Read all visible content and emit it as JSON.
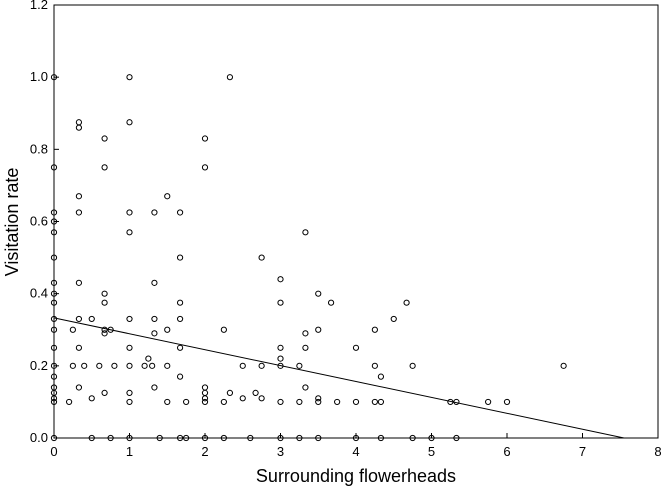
{
  "chart_data": {
    "type": "scatter",
    "title": "",
    "xlabel": "Surrounding flowerheads",
    "ylabel": "Visitation rate",
    "xlim": [
      0,
      8
    ],
    "ylim": [
      0,
      1.2
    ],
    "x_ticks": [
      "0",
      "1",
      "2",
      "3",
      "4",
      "5",
      "6",
      "7",
      "8"
    ],
    "y_ticks": [
      "0.0",
      "0.2",
      "0.4",
      "0.6",
      "0.8",
      "1.0",
      "1.2"
    ],
    "grid": false,
    "legend": "none",
    "marker": "open-circle",
    "marker_color": "#000000",
    "points": [
      [
        0,
        1.0
      ],
      [
        0,
        0.75
      ],
      [
        0,
        0.625
      ],
      [
        0,
        0.6
      ],
      [
        0,
        0.57
      ],
      [
        0,
        0.5
      ],
      [
        0,
        0.43
      ],
      [
        0,
        0.4
      ],
      [
        0,
        0.375
      ],
      [
        0,
        0.33
      ],
      [
        0,
        0.3
      ],
      [
        0,
        0.25
      ],
      [
        0,
        0.2
      ],
      [
        0,
        0.17
      ],
      [
        0,
        0.14
      ],
      [
        0,
        0.125
      ],
      [
        0,
        0.11
      ],
      [
        0,
        0.1
      ],
      [
        0,
        0
      ],
      [
        0.2,
        0.1
      ],
      [
        0.25,
        0.2
      ],
      [
        0.25,
        0.3
      ],
      [
        0.33,
        0.875
      ],
      [
        0.33,
        0.86
      ],
      [
        0.33,
        0.67
      ],
      [
        0.33,
        0.625
      ],
      [
        0.33,
        0.43
      ],
      [
        0.33,
        0.33
      ],
      [
        0.33,
        0.25
      ],
      [
        0.33,
        0.14
      ],
      [
        0.4,
        0.2
      ],
      [
        0.5,
        0.33
      ],
      [
        0.5,
        0.11
      ],
      [
        0.5,
        0
      ],
      [
        0.6,
        0.2
      ],
      [
        0.67,
        0.83
      ],
      [
        0.67,
        0.75
      ],
      [
        0.67,
        0.4
      ],
      [
        0.67,
        0.375
      ],
      [
        0.67,
        0.3
      ],
      [
        0.67,
        0.29
      ],
      [
        0.67,
        0.125
      ],
      [
        0.75,
        0.3
      ],
      [
        0.75,
        0
      ],
      [
        0.8,
        0.2
      ],
      [
        1.0,
        1.0
      ],
      [
        1.0,
        0.875
      ],
      [
        1.0,
        0.625
      ],
      [
        1.0,
        0.57
      ],
      [
        1.0,
        0.33
      ],
      [
        1.0,
        0.25
      ],
      [
        1.0,
        0.2
      ],
      [
        1.0,
        0.125
      ],
      [
        1.0,
        0.1
      ],
      [
        1.0,
        0
      ],
      [
        1.2,
        0.2
      ],
      [
        1.25,
        0.22
      ],
      [
        1.3,
        0.2
      ],
      [
        1.33,
        0.625
      ],
      [
        1.33,
        0.43
      ],
      [
        1.33,
        0.33
      ],
      [
        1.33,
        0.29
      ],
      [
        1.33,
        0.14
      ],
      [
        1.4,
        0
      ],
      [
        1.5,
        0.67
      ],
      [
        1.5,
        0.3
      ],
      [
        1.5,
        0.2
      ],
      [
        1.5,
        0.1
      ],
      [
        1.67,
        0.625
      ],
      [
        1.67,
        0.5
      ],
      [
        1.67,
        0.375
      ],
      [
        1.67,
        0.33
      ],
      [
        1.67,
        0.25
      ],
      [
        1.67,
        0.17
      ],
      [
        1.67,
        0
      ],
      [
        1.75,
        0.1
      ],
      [
        1.75,
        0
      ],
      [
        2.0,
        0.83
      ],
      [
        2.0,
        0.75
      ],
      [
        2.0,
        0.14
      ],
      [
        2.0,
        0.125
      ],
      [
        2.0,
        0.11
      ],
      [
        2.0,
        0.1
      ],
      [
        2.0,
        0
      ],
      [
        2.25,
        0.3
      ],
      [
        2.25,
        0.1
      ],
      [
        2.25,
        0
      ],
      [
        2.33,
        1.0
      ],
      [
        2.33,
        0.125
      ],
      [
        2.5,
        0.2
      ],
      [
        2.5,
        0.11
      ],
      [
        2.6,
        0
      ],
      [
        2.67,
        0.125
      ],
      [
        2.75,
        0.5
      ],
      [
        2.75,
        0.2
      ],
      [
        2.75,
        0.11
      ],
      [
        3.0,
        0.44
      ],
      [
        3.0,
        0.375
      ],
      [
        3.0,
        0.25
      ],
      [
        3.0,
        0.22
      ],
      [
        3.0,
        0.2
      ],
      [
        3.0,
        0.1
      ],
      [
        3.0,
        0
      ],
      [
        3.25,
        0.2
      ],
      [
        3.25,
        0.1
      ],
      [
        3.25,
        0
      ],
      [
        3.33,
        0.57
      ],
      [
        3.33,
        0.29
      ],
      [
        3.33,
        0.25
      ],
      [
        3.33,
        0.14
      ],
      [
        3.5,
        0.4
      ],
      [
        3.5,
        0.3
      ],
      [
        3.5,
        0.11
      ],
      [
        3.5,
        0.1
      ],
      [
        3.5,
        0
      ],
      [
        3.67,
        0.375
      ],
      [
        3.75,
        0.1
      ],
      [
        4.0,
        0.25
      ],
      [
        4.0,
        0.1
      ],
      [
        4.0,
        0
      ],
      [
        4.25,
        0.3
      ],
      [
        4.25,
        0.2
      ],
      [
        4.25,
        0.1
      ],
      [
        4.33,
        0.17
      ],
      [
        4.33,
        0.1
      ],
      [
        4.33,
        0
      ],
      [
        4.5,
        0.33
      ],
      [
        4.67,
        0.375
      ],
      [
        4.75,
        0.2
      ],
      [
        4.75,
        0
      ],
      [
        5.0,
        0
      ],
      [
        5.25,
        0.1
      ],
      [
        5.33,
        0.1
      ],
      [
        5.33,
        0
      ],
      [
        5.75,
        0.1
      ],
      [
        6.0,
        0.1
      ],
      [
        6.75,
        0.2
      ]
    ],
    "trend_line": {
      "x": [
        0,
        7.55
      ],
      "y": [
        0.333,
        0
      ]
    }
  }
}
